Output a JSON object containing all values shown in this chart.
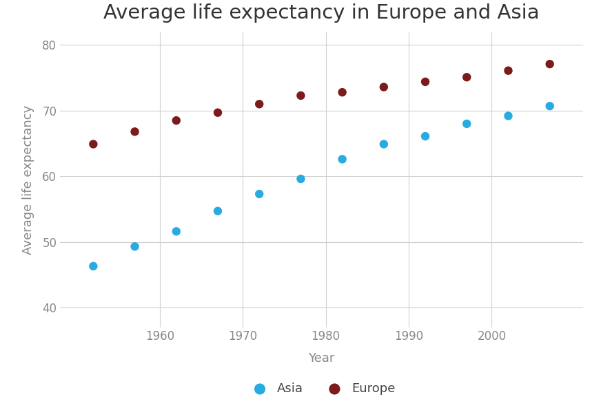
{
  "title": "Average life expectancy in Europe and Asia",
  "xlabel": "Year",
  "ylabel": "Average life expectancy",
  "years": [
    1952,
    1957,
    1962,
    1967,
    1972,
    1977,
    1982,
    1987,
    1992,
    1997,
    2002,
    2007
  ],
  "asia": [
    46.3,
    49.3,
    51.6,
    54.7,
    57.3,
    59.6,
    62.6,
    64.9,
    66.1,
    68.0,
    69.2,
    70.7
  ],
  "europe": [
    64.9,
    66.8,
    68.5,
    69.7,
    71.0,
    72.3,
    72.8,
    73.6,
    74.4,
    75.1,
    76.1,
    77.1
  ],
  "asia_color": "#29ABE2",
  "europe_color": "#7B1B1B",
  "background_color": "#ffffff",
  "grid_color": "#d0d0d0",
  "xlim": [
    1948,
    2011
  ],
  "ylim": [
    37,
    82
  ],
  "yticks": [
    40,
    50,
    60,
    70,
    80
  ],
  "xticks": [
    1960,
    1970,
    1980,
    1990,
    2000
  ],
  "marker_size": 80,
  "title_fontsize": 21,
  "label_fontsize": 13,
  "tick_fontsize": 12,
  "legend_fontsize": 13,
  "tick_color": "#888888",
  "title_color": "#333333",
  "label_color": "#888888"
}
